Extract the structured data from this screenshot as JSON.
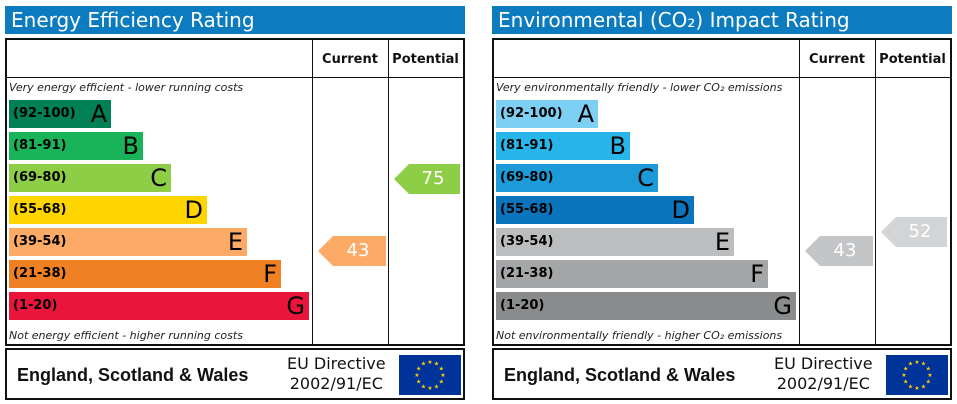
{
  "panels": [
    {
      "title": "Energy Efficiency Rating",
      "col_current": "Current",
      "col_potential": "Potential",
      "top_caption": "Very energy efficient - lower running costs",
      "bottom_caption": "Not energy efficient - higher running costs",
      "footer_region": "England, Scotland & Wales",
      "footer_directive_1": "EU Directive",
      "footer_directive_2": "2002/91/EC"
    },
    {
      "title": "Environmental (CO₂) Impact Rating",
      "col_current": "Current",
      "col_potential": "Potential",
      "top_caption": "Very environmentally friendly - lower CO₂ emissions",
      "bottom_caption": "Not environmentally friendly - higher CO₂ emissions",
      "footer_region": "England, Scotland & Wales",
      "footer_directive_1": "EU Directive",
      "footer_directive_2": "2002/91/EC"
    }
  ],
  "chart_data": [
    {
      "type": "bar",
      "title": "Energy Efficiency Rating",
      "bands": [
        {
          "range": "(92-100)",
          "letter": "A",
          "color": "#008054",
          "text_color": "#000000"
        },
        {
          "range": "(81-91)",
          "letter": "B",
          "color": "#19b459",
          "text_color": "#000000"
        },
        {
          "range": "(69-80)",
          "letter": "C",
          "color": "#8dce46",
          "text_color": "#000000"
        },
        {
          "range": "(55-68)",
          "letter": "D",
          "color": "#ffd500",
          "text_color": "#000000"
        },
        {
          "range": "(39-54)",
          "letter": "E",
          "color": "#fcaa65",
          "text_color": "#000000"
        },
        {
          "range": "(21-38)",
          "letter": "F",
          "color": "#ef8023",
          "text_color": "#000000"
        },
        {
          "range": "(1-20)",
          "letter": "G",
          "color": "#e9153b",
          "text_color": "#000000"
        }
      ],
      "current": {
        "value": 43,
        "band": "E",
        "color": "#fcaa65"
      },
      "potential": {
        "value": 75,
        "band": "C",
        "color": "#8dce46"
      }
    },
    {
      "type": "bar",
      "title": "Environmental (CO₂) Impact Rating",
      "bands": [
        {
          "range": "(92-100)",
          "letter": "A",
          "color": "#7ecff4",
          "text_color": "#000000"
        },
        {
          "range": "(81-91)",
          "letter": "B",
          "color": "#28b6ea",
          "text_color": "#000000"
        },
        {
          "range": "(69-80)",
          "letter": "C",
          "color": "#1d9ad8",
          "text_color": "#000000"
        },
        {
          "range": "(55-68)",
          "letter": "D",
          "color": "#0a74bd",
          "text_color": "#000000"
        },
        {
          "range": "(39-54)",
          "letter": "E",
          "color": "#bbbdbf",
          "text_color": "#000000"
        },
        {
          "range": "(21-38)",
          "letter": "F",
          "color": "#a4a6a8",
          "text_color": "#000000"
        },
        {
          "range": "(1-20)",
          "letter": "G",
          "color": "#898b8d",
          "text_color": "#000000"
        }
      ],
      "current": {
        "value": 43,
        "band": "E",
        "color": "#c4c5c7"
      },
      "potential": {
        "value": 52,
        "band": "E",
        "color": "#d3d4d5"
      }
    }
  ]
}
